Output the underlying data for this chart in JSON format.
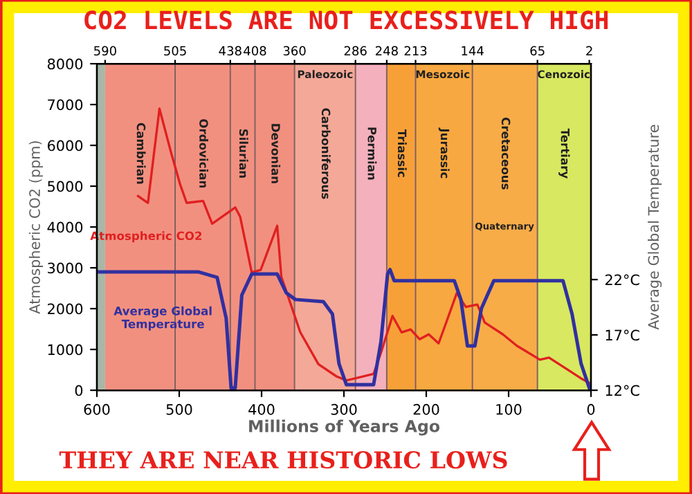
{
  "chart_data": {
    "type": "line",
    "title": "CO2 LEVELS ARE NOT EXCESSIVELY HIGH",
    "xlabel": "Millions of Years Ago",
    "ylabel": "Atmospheric CO2 (ppm)",
    "y2label": "Average Global Temperature",
    "xlim": [
      600,
      0
    ],
    "xticks": [
      600,
      500,
      400,
      300,
      200,
      100,
      0
    ],
    "ylim": [
      0,
      8000
    ],
    "yticks": [
      0,
      1000,
      2000,
      3000,
      4000,
      5000,
      6000,
      7000,
      8000
    ],
    "y2lim": [
      12,
      41.5
    ],
    "y2ticks": [
      {
        "value": 12,
        "label": "12°C"
      },
      {
        "value": 17,
        "label": "17°C"
      },
      {
        "value": 22,
        "label": "22°C"
      }
    ],
    "x2lim": [
      600,
      0
    ],
    "x2ticks": [
      590,
      505,
      438,
      408,
      360,
      286,
      248,
      213,
      144,
      65,
      2
    ],
    "series": [
      {
        "name": "Atmospheric CO2",
        "color": "#e02020",
        "x": [
          550,
          538,
          524,
          510,
          499,
          491,
          471,
          460,
          432,
          426,
          412,
          401,
          381,
          376,
          353,
          331,
          309,
          297,
          264,
          255,
          241,
          230,
          219,
          208,
          197,
          185,
          174,
          163,
          152,
          138,
          129,
          107,
          90,
          62,
          51,
          34,
          12,
          2
        ],
        "values": [
          4760,
          4590,
          6900,
          5830,
          5050,
          4590,
          4640,
          4080,
          4480,
          4250,
          2890,
          2950,
          4030,
          2780,
          1420,
          640,
          340,
          240,
          400,
          920,
          1820,
          1420,
          1490,
          1250,
          1370,
          1150,
          1760,
          2380,
          2040,
          2100,
          1660,
          1370,
          1090,
          750,
          800,
          580,
          290,
          180
        ]
      },
      {
        "name": "Average Global Temperature",
        "color": "#3030a0",
        "axis": "y2",
        "x": [
          600,
          477,
          454,
          443,
          437,
          432,
          424,
          412,
          381,
          370,
          359,
          325,
          314,
          306,
          297,
          264,
          255,
          247,
          244,
          239,
          166,
          158,
          150,
          141,
          133,
          118,
          34,
          23,
          12,
          2
        ],
        "values": [
          22.7,
          22.7,
          22.2,
          18.5,
          12.2,
          12.2,
          20.6,
          22.5,
          22.5,
          20.8,
          20.2,
          20.0,
          18.9,
          14.4,
          12.5,
          12.5,
          16.4,
          22.5,
          22.9,
          21.9,
          21.9,
          20.2,
          16.0,
          16.0,
          19.4,
          21.9,
          21.9,
          18.9,
          14.4,
          12.2
        ]
      }
    ],
    "bands": [
      {
        "axis": "x",
        "from": 600,
        "to": 590,
        "color": "#a8b8a8"
      },
      {
        "axis": "x",
        "from": 590,
        "to": 505,
        "label": "Cambrian",
        "color": "#f29080"
      },
      {
        "axis": "x",
        "from": 505,
        "to": 438,
        "label": "Ordovician",
        "color": "#f29080"
      },
      {
        "axis": "x",
        "from": 438,
        "to": 408,
        "label": "Silurian",
        "color": "#f29080"
      },
      {
        "axis": "x",
        "from": 408,
        "to": 360,
        "label": "Devonian",
        "color": "#f29080"
      },
      {
        "axis": "x",
        "from": 360,
        "to": 286,
        "label": "Carboniferous",
        "color": "#f4a898"
      },
      {
        "axis": "x",
        "from": 286,
        "to": 248,
        "label": "Permian",
        "color": "#f4b0bc"
      },
      {
        "axis": "x",
        "from": 248,
        "to": 213,
        "label": "Triassic",
        "color": "#f8a038"
      },
      {
        "axis": "x",
        "from": 213,
        "to": 144,
        "label": "Jurassic",
        "color": "#f8a840"
      },
      {
        "axis": "x",
        "from": 144,
        "to": 65,
        "label": "Cretaceous",
        "color": "#f8ac48"
      },
      {
        "axis": "x",
        "from": 65,
        "to": 0,
        "label": "Tertiary",
        "color": "#d8e860"
      }
    ],
    "ref_lines": [
      {
        "axis": "x",
        "value": 505,
        "color": "#806060"
      },
      {
        "axis": "x",
        "value": 438,
        "color": "#806060"
      },
      {
        "axis": "x",
        "value": 408,
        "color": "#806060"
      },
      {
        "axis": "x",
        "value": 360,
        "color": "#806060"
      },
      {
        "axis": "x",
        "value": 286,
        "color": "#806060"
      },
      {
        "axis": "x",
        "value": 248,
        "color": "#806060"
      },
      {
        "axis": "x",
        "value": 213,
        "color": "#806060"
      },
      {
        "axis": "x",
        "value": 144,
        "color": "#806060"
      },
      {
        "axis": "x",
        "value": 65,
        "color": "#806060"
      }
    ],
    "annotations": [
      "Paleozoic",
      "Mesozoic",
      "Cenozoic",
      "Quaternary",
      "THEY ARE NEAR HISTORIC LOWS"
    ],
    "grid": false,
    "legend": false
  }
}
